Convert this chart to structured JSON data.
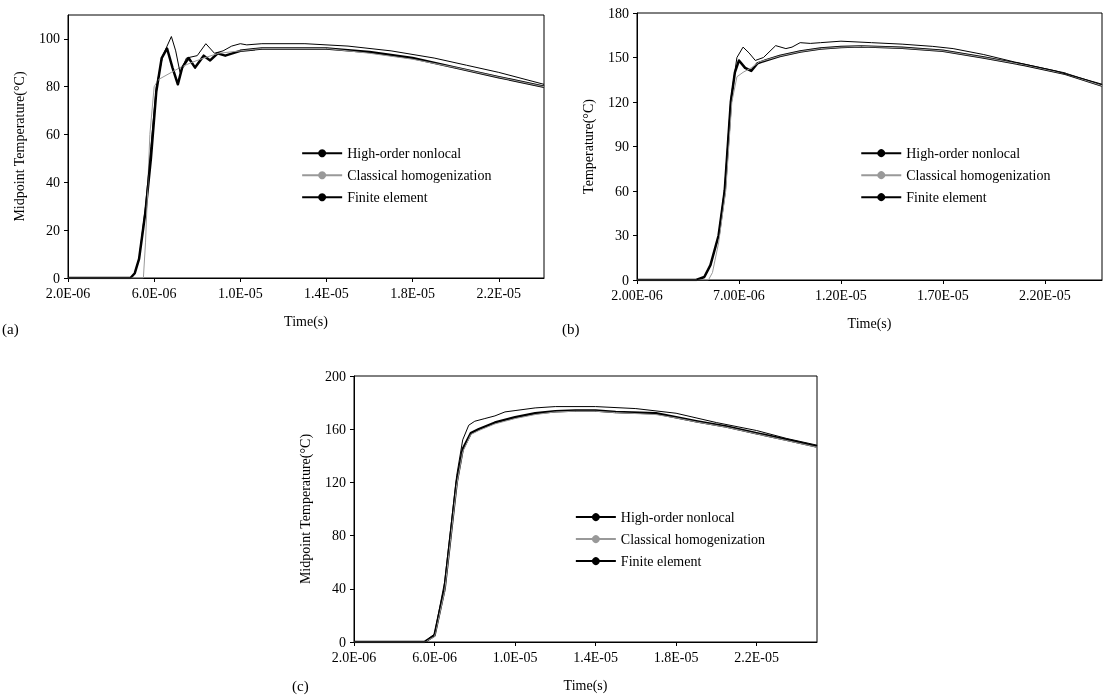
{
  "chart_data": [
    {
      "type": "line",
      "xlabel": "Time(s)",
      "ylabel": "Midpoint Temperature(°C)",
      "annotations": [
        "(a)"
      ],
      "legend": "right",
      "grid": false,
      "marker": "none",
      "line_style": "solid",
      "xlim": [
        2e-06,
        2.41e-05
      ],
      "xticks": [
        {
          "value": 2e-06,
          "label": "2.0E-06"
        },
        {
          "value": 6e-06,
          "label": "6.0E-06"
        },
        {
          "value": 1e-05,
          "label": "1.0E-05"
        },
        {
          "value": 1.4e-05,
          "label": "1.4E-05"
        },
        {
          "value": 1.8e-05,
          "label": "1.8E-05"
        },
        {
          "value": 2.2e-05,
          "label": "2.2E-05"
        }
      ],
      "ylim": [
        0,
        110
      ],
      "yticks": [
        0,
        20,
        40,
        60,
        80,
        100
      ],
      "series": [
        {
          "name": "High-order nonlocal",
          "color": "#000000",
          "x": [
            2e-06,
            4.9e-06,
            5.1e-06,
            5.3e-06,
            5.45e-06,
            5.6e-06,
            5.85e-06,
            6.1e-06,
            6.35e-06,
            6.6e-06,
            6.85e-06,
            7.1e-06,
            7.3e-06,
            7.6e-06,
            7.9e-06,
            8.3e-06,
            8.6e-06,
            8.95e-06,
            9.3e-06,
            1e-05,
            1.1e-05,
            1.4e-05,
            1.6e-05,
            1.8e-05,
            2e-05,
            2.2e-05,
            2.41e-05
          ],
          "values": [
            0,
            0,
            2,
            8,
            18,
            28,
            50,
            78,
            92,
            96,
            88,
            81,
            88,
            92,
            88,
            93,
            91,
            94,
            93,
            95,
            96,
            96,
            94.5,
            92,
            88,
            84,
            80
          ]
        },
        {
          "name": "Classical homogenization",
          "color": "#999999",
          "x": [
            2e-06,
            5.5e-06,
            5.6e-06,
            5.8e-06,
            6e-06,
            6.2e-06,
            6.8e-06,
            7.2e-06,
            7.7e-06,
            8.3e-06,
            9e-06,
            1e-05,
            1.1e-05,
            1.4e-05,
            1.6e-05,
            1.8e-05,
            2e-05,
            2.2e-05,
            2.41e-05
          ],
          "values": [
            0,
            0,
            15,
            60,
            80,
            83,
            86,
            88,
            90,
            92,
            94,
            95,
            96,
            96,
            94,
            91.5,
            88,
            84,
            80
          ]
        },
        {
          "name": "Finite element",
          "color": "#000000",
          "x": [
            2e-06,
            4.9e-06,
            5.1e-06,
            5.3e-06,
            5.6e-06,
            5.85e-06,
            6.1e-06,
            6.4e-06,
            6.6e-06,
            6.8e-06,
            7e-06,
            7.2e-06,
            7.5e-06,
            8e-06,
            8.4e-06,
            8.8e-06,
            9.2e-06,
            9.6e-06,
            1e-05,
            1.03e-05,
            1.1e-05,
            1.3e-05,
            1.5e-05,
            1.7e-05,
            1.9e-05,
            2.05e-05,
            2.2e-05,
            2.41e-05
          ],
          "values": [
            0,
            0,
            2,
            8,
            30,
            55,
            80,
            93,
            97,
            101,
            95,
            86,
            92,
            93,
            98,
            94,
            95,
            97,
            98,
            97.5,
            98,
            98,
            97,
            95,
            92,
            89,
            86,
            81
          ]
        }
      ]
    },
    {
      "type": "line",
      "xlabel": "Time(s)",
      "ylabel": "Temperature(°C)",
      "annotations": [
        "(b)"
      ],
      "legend": "right",
      "grid": false,
      "marker": "none",
      "line_style": "solid",
      "xlim": [
        2e-06,
        2.48e-05
      ],
      "xticks": [
        {
          "value": 2e-06,
          "label": "2.00E-06"
        },
        {
          "value": 7e-06,
          "label": "7.00E-06"
        },
        {
          "value": 1.2e-05,
          "label": "1.20E-05"
        },
        {
          "value": 1.7e-05,
          "label": "1.70E-05"
        },
        {
          "value": 2.2e-05,
          "label": "2.20E-05"
        }
      ],
      "ylim": [
        0,
        180
      ],
      "yticks": [
        0,
        30,
        60,
        90,
        120,
        150,
        180
      ],
      "series": [
        {
          "name": "High-order nonlocal",
          "color": "#000000",
          "x": [
            2e-06,
            4.9e-06,
            5.3e-06,
            5.6e-06,
            6e-06,
            6.3e-06,
            6.6e-06,
            6.8e-06,
            7e-06,
            7.3e-06,
            7.6e-06,
            7.9e-06,
            8.3e-06,
            9e-06,
            1e-05,
            1.1e-05,
            1.2e-05,
            1.3e-05,
            1.5e-05,
            1.7e-05,
            1.9e-05,
            2.1e-05,
            2.3e-05,
            2.48e-05
          ],
          "values": [
            0,
            0,
            2,
            10,
            30,
            60,
            120,
            140,
            148,
            143,
            141,
            146,
            148,
            151,
            154,
            156,
            157,
            157.5,
            156.5,
            154.5,
            150,
            145,
            139,
            131
          ]
        },
        {
          "name": "Classical homogenization",
          "color": "#999999",
          "x": [
            2e-06,
            5.5e-06,
            5.7e-06,
            6e-06,
            6.35e-06,
            6.65e-06,
            6.9e-06,
            7.2e-06,
            7.6e-06,
            8e-06,
            9e-06,
            1e-05,
            1.1e-05,
            1.2e-05,
            1.3e-05,
            1.5e-05,
            1.7e-05,
            1.9e-05,
            2.1e-05,
            2.3e-05,
            2.48e-05
          ],
          "values": [
            0,
            0,
            5,
            25,
            60,
            120,
            137,
            140,
            143,
            147,
            151,
            154,
            156,
            157,
            157.5,
            156.5,
            154.5,
            150,
            145,
            139,
            131
          ]
        },
        {
          "name": "Finite element",
          "color": "#000000",
          "x": [
            2e-06,
            4.9e-06,
            5.3e-06,
            5.6e-06,
            6e-06,
            6.3e-06,
            6.6e-06,
            6.9e-06,
            7.2e-06,
            7.5e-06,
            7.8e-06,
            8.2e-06,
            8.8e-06,
            9.3e-06,
            9.6e-06,
            1e-05,
            1.05e-05,
            1.1e-05,
            1.2e-05,
            1.35e-05,
            1.5e-05,
            1.65e-05,
            1.75e-05,
            1.9e-05,
            2.05e-05,
            2.25e-05,
            2.48e-05
          ],
          "values": [
            0,
            0,
            2,
            10,
            30,
            62,
            122,
            150,
            157,
            153,
            148,
            150,
            158,
            156,
            157,
            160,
            159.5,
            160,
            161,
            160,
            159,
            157.5,
            156,
            152,
            147,
            141,
            132
          ]
        }
      ]
    },
    {
      "type": "line",
      "xlabel": "Time(s)",
      "ylabel": "Midpoint Temperature(°C)",
      "annotations": [
        "(c)"
      ],
      "legend": "right",
      "grid": false,
      "marker": "none",
      "line_style": "solid",
      "xlim": [
        2e-06,
        2.5e-05
      ],
      "xticks": [
        {
          "value": 2e-06,
          "label": "2.0E-06"
        },
        {
          "value": 6e-06,
          "label": "6.0E-06"
        },
        {
          "value": 1e-05,
          "label": "1.0E-05"
        },
        {
          "value": 1.4e-05,
          "label": "1.4E-05"
        },
        {
          "value": 1.8e-05,
          "label": "1.8E-05"
        },
        {
          "value": 2.2e-05,
          "label": "2.2E-05"
        }
      ],
      "ylim": [
        0,
        200
      ],
      "yticks": [
        0,
        40,
        80,
        120,
        160,
        200
      ],
      "series": [
        {
          "name": "High-order nonlocal",
          "color": "#000000",
          "x": [
            2e-06,
            5.5e-06,
            6e-06,
            6.5e-06,
            6.8e-06,
            7.1e-06,
            7.4e-06,
            7.8e-06,
            8.2e-06,
            9e-06,
            1e-05,
            1.1e-05,
            1.2e-05,
            1.3e-05,
            1.4e-05,
            1.5e-05,
            1.7e-05,
            1.8e-05,
            1.9e-05,
            2.05e-05,
            2.2e-05,
            2.35e-05,
            2.5e-05
          ],
          "values": [
            0,
            0,
            5,
            40,
            80,
            120,
            145,
            157,
            160,
            165,
            169,
            172,
            173.5,
            174,
            174,
            173,
            172,
            169,
            166,
            162,
            157,
            152,
            147
          ]
        },
        {
          "name": "Classical homogenization",
          "color": "#999999",
          "x": [
            2e-06,
            5.5e-06,
            6e-06,
            6.5e-06,
            6.8e-06,
            7.1e-06,
            7.4e-06,
            7.8e-06,
            8.2e-06,
            9e-06,
            1e-05,
            1.1e-05,
            1.2e-05,
            1.3e-05,
            1.4e-05,
            1.5e-05,
            1.7e-05,
            1.8e-05,
            1.9e-05,
            2.05e-05,
            2.2e-05,
            2.35e-05,
            2.5e-05
          ],
          "values": [
            0,
            0,
            4,
            38,
            78,
            118,
            143,
            156,
            159,
            164,
            168,
            171,
            173,
            173.5,
            173.5,
            172.5,
            171,
            168.5,
            165.5,
            161.5,
            156.5,
            151.5,
            146.5
          ]
        },
        {
          "name": "Finite element",
          "color": "#000000",
          "x": [
            2e-06,
            5.5e-06,
            6e-06,
            6.5e-06,
            6.8e-06,
            7.1e-06,
            7.4e-06,
            7.7e-06,
            8e-06,
            8.5e-06,
            9e-06,
            9.5e-06,
            1e-05,
            1.1e-05,
            1.2e-05,
            1.4e-05,
            1.6e-05,
            1.8e-05,
            2e-05,
            2.2e-05,
            2.35e-05,
            2.5e-05
          ],
          "values": [
            0,
            0,
            6,
            45,
            85,
            125,
            152,
            163,
            166,
            168,
            170,
            173,
            174,
            176,
            177,
            177,
            175.5,
            172,
            165,
            159,
            153,
            148
          ]
        }
      ]
    }
  ]
}
